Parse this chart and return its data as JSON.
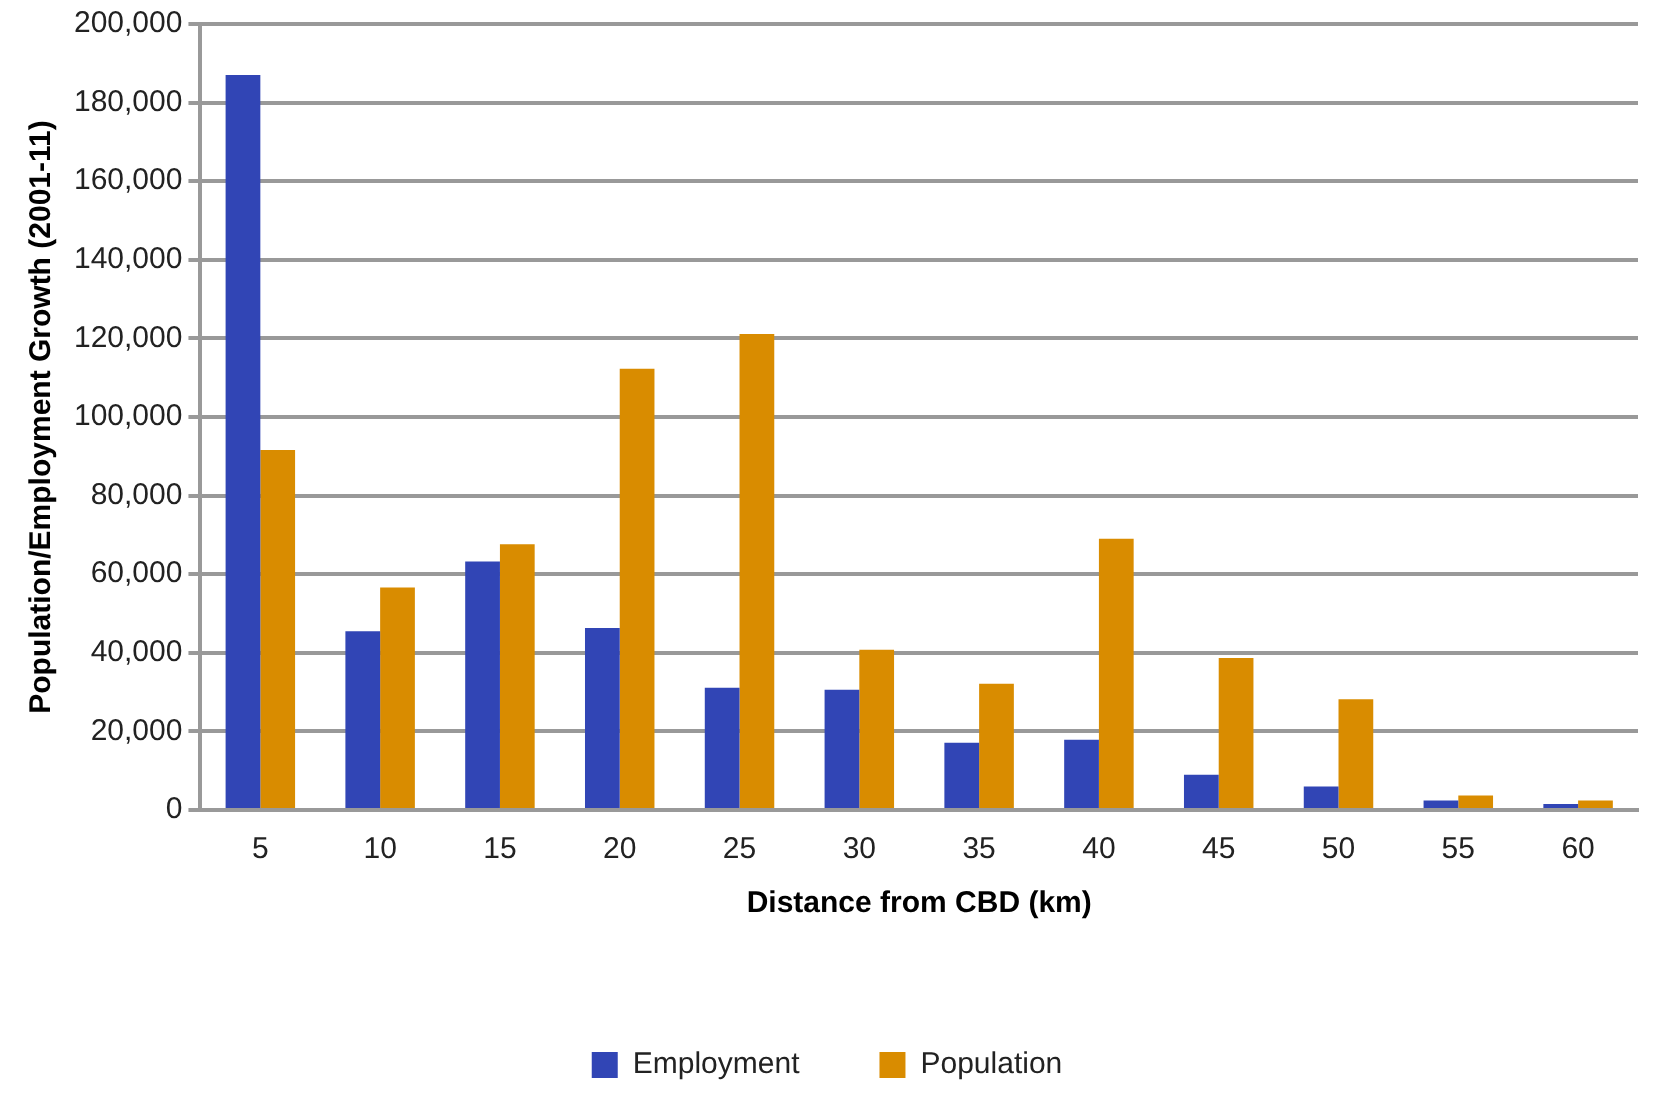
{
  "chart_data": {
    "type": "bar",
    "xlabel": "Distance from CBD (km)",
    "ylabel": "Population/Employment Growth (2001-11)",
    "categories": [
      "5",
      "10",
      "15",
      "20",
      "25",
      "30",
      "35",
      "40",
      "45",
      "50",
      "55",
      "60"
    ],
    "series": [
      {
        "name": "Employment",
        "color": "#3145b5",
        "values": [
          187000,
          45500,
          63200,
          46300,
          31100,
          30600,
          17100,
          17900,
          9000,
          6000,
          2400,
          1500
        ]
      },
      {
        "name": "Population",
        "color": "#d98c00",
        "values": [
          91600,
          56600,
          67600,
          112300,
          121100,
          40800,
          32100,
          69000,
          38700,
          28200,
          3700,
          2400
        ]
      }
    ],
    "ylim": [
      0,
      200000
    ],
    "yticks": [
      {
        "value": 0,
        "label": "0"
      },
      {
        "value": 20000,
        "label": "20,000"
      },
      {
        "value": 40000,
        "label": "40,000"
      },
      {
        "value": 60000,
        "label": "60,000"
      },
      {
        "value": 80000,
        "label": "80,000"
      },
      {
        "value": 100000,
        "label": "100,000"
      },
      {
        "value": 120000,
        "label": "120,000"
      },
      {
        "value": 140000,
        "label": "140,000"
      },
      {
        "value": 160000,
        "label": "160,000"
      },
      {
        "value": 180000,
        "label": "180,000"
      },
      {
        "value": 200000,
        "label": "200,000"
      }
    ],
    "grid": "y",
    "legend": "bottom"
  }
}
